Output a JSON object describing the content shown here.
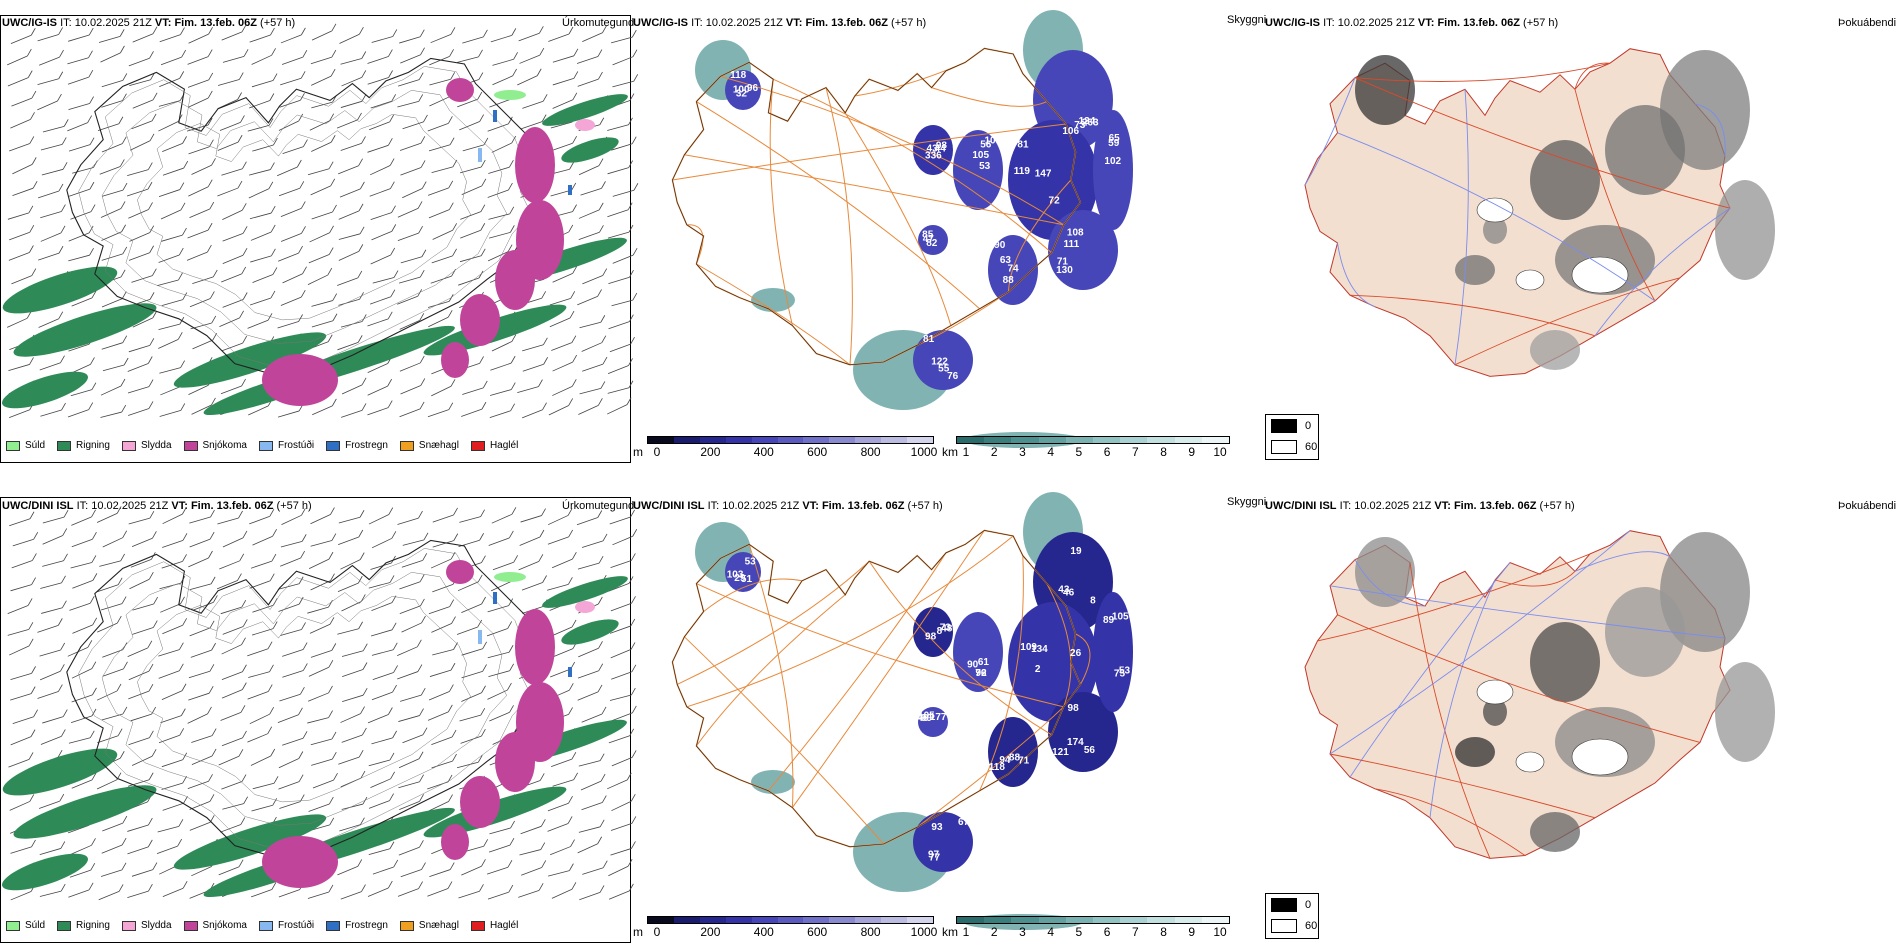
{
  "rows": [
    {
      "model": "UWC/IG-IS",
      "it_label": "IT:",
      "it_value": "10.02.2025 21Z",
      "vt_label": "VT:",
      "vt_value": "Fim. 13.feb. 06Z",
      "lead": "(+57 h)",
      "ceiling_labels": [
        "124",
        "147",
        "130",
        "105",
        "74",
        "44",
        "76",
        "100",
        "47",
        "65",
        "106",
        "119",
        "108",
        "109",
        "63",
        "43",
        "81",
        "32",
        "85",
        "102",
        "263",
        "81",
        "111",
        "56",
        "90",
        "98",
        "55",
        "96",
        "82",
        "59",
        "73",
        "72",
        "71",
        "53",
        "88",
        "336",
        "122",
        "118"
      ]
    },
    {
      "model": "UWC/DINI ISL",
      "it_label": "IT:",
      "it_value": "10.02.2025 21Z",
      "vt_label": "VT:",
      "vt_value": "Fim. 13.feb. 06Z",
      "lead": "(+57 h)",
      "ceiling_labels": [
        "46",
        "109",
        "56",
        "61",
        "94",
        "98",
        "67",
        "51",
        "99",
        "105",
        "19",
        "134",
        "98",
        "90",
        "118",
        "73",
        "93",
        "53",
        "46",
        "53",
        "8",
        "26",
        "174",
        "76",
        "71",
        "48",
        "77",
        "103",
        "105",
        "89",
        "43",
        "2",
        "121",
        "92",
        "88",
        "8",
        "97",
        "29",
        "177",
        "75"
      ]
    }
  ],
  "panel_labels": {
    "precip": "Úrkomutegund",
    "ceiling": "Skyggni",
    "fog": "Þokuábendi"
  },
  "precip_legend": [
    {
      "label": "Súld",
      "color": "#90ee90"
    },
    {
      "label": "Rigning",
      "color": "#2e8b57"
    },
    {
      "label": "Slydda",
      "color": "#f4a6d7"
    },
    {
      "label": "Snjókoma",
      "color": "#c0459a"
    },
    {
      "label": "Frostúði",
      "color": "#87b8f0"
    },
    {
      "label": "Frostregn",
      "color": "#2f6fc4"
    },
    {
      "label": "Snæhagl",
      "color": "#f0a020"
    },
    {
      "label": "Haglél",
      "color": "#e02020"
    }
  ],
  "ceiling_scale": {
    "unit": "m",
    "ticks": [
      "0",
      "200",
      "400",
      "600",
      "800",
      "1000"
    ],
    "colors": [
      "#0a0a1e",
      "#1a1a6e",
      "#26268f",
      "#3434a8",
      "#4646b8",
      "#5a5ac0",
      "#7070c8",
      "#8a8ad0",
      "#a4a4d8",
      "#bcbce2",
      "#d4d4ec"
    ]
  },
  "visibility_scale": {
    "unit": "km",
    "ticks": [
      "1",
      "2",
      "3",
      "4",
      "5",
      "6",
      "7",
      "8",
      "9",
      "10"
    ],
    "colors": [
      "#2a6b6b",
      "#3a7d7d",
      "#4d8f8f",
      "#62a0a0",
      "#7ab2b2",
      "#92c3c3",
      "#aad2d2",
      "#c2e0e0",
      "#d8ecec",
      "#ecf6f6"
    ]
  },
  "fog_legend": [
    {
      "label": "0",
      "color": "#000000"
    },
    {
      "label": "60",
      "color": "#ffffff"
    }
  ]
}
